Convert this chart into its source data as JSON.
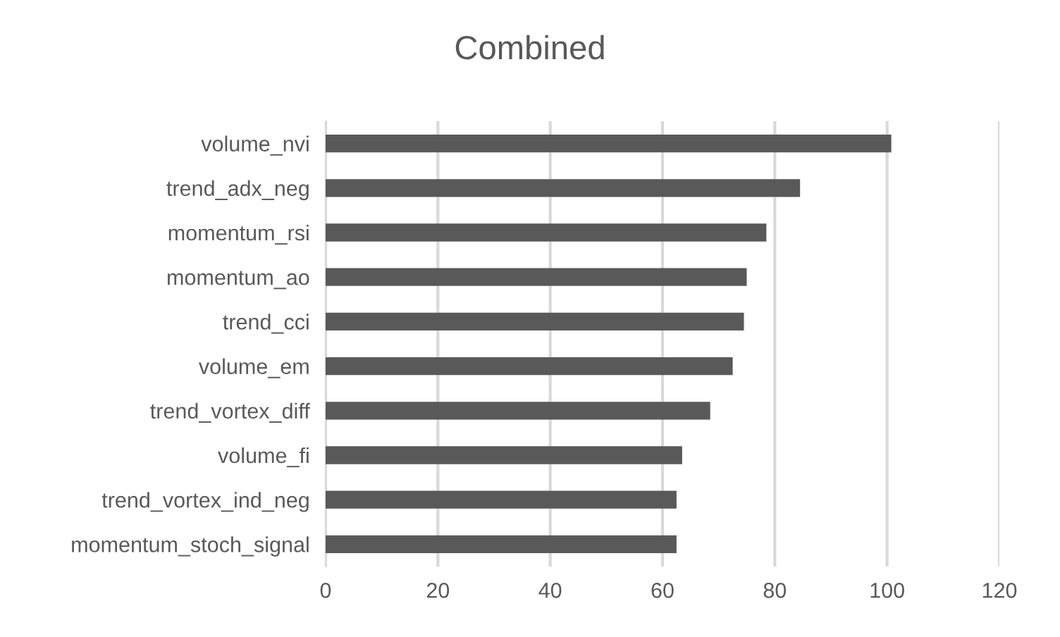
{
  "chart_data": {
    "type": "bar",
    "orientation": "horizontal",
    "title": "Combined",
    "categories": [
      "volume_nvi",
      "trend_adx_neg",
      "momentum_rsi",
      "momentum_ao",
      "trend_cci",
      "volume_em",
      "trend_vortex_diff",
      "volume_fi",
      "trend_vortex_ind_neg",
      "momentum_stoch_signal"
    ],
    "values": [
      100.75,
      84.5,
      78.5,
      75,
      74.5,
      72.5,
      68.5,
      63.5,
      62.5,
      62.5
    ],
    "color": "#595959",
    "xlim": [
      0,
      120
    ],
    "xticks": [
      0,
      20,
      40,
      60,
      80,
      100,
      120
    ],
    "grid": "x"
  }
}
